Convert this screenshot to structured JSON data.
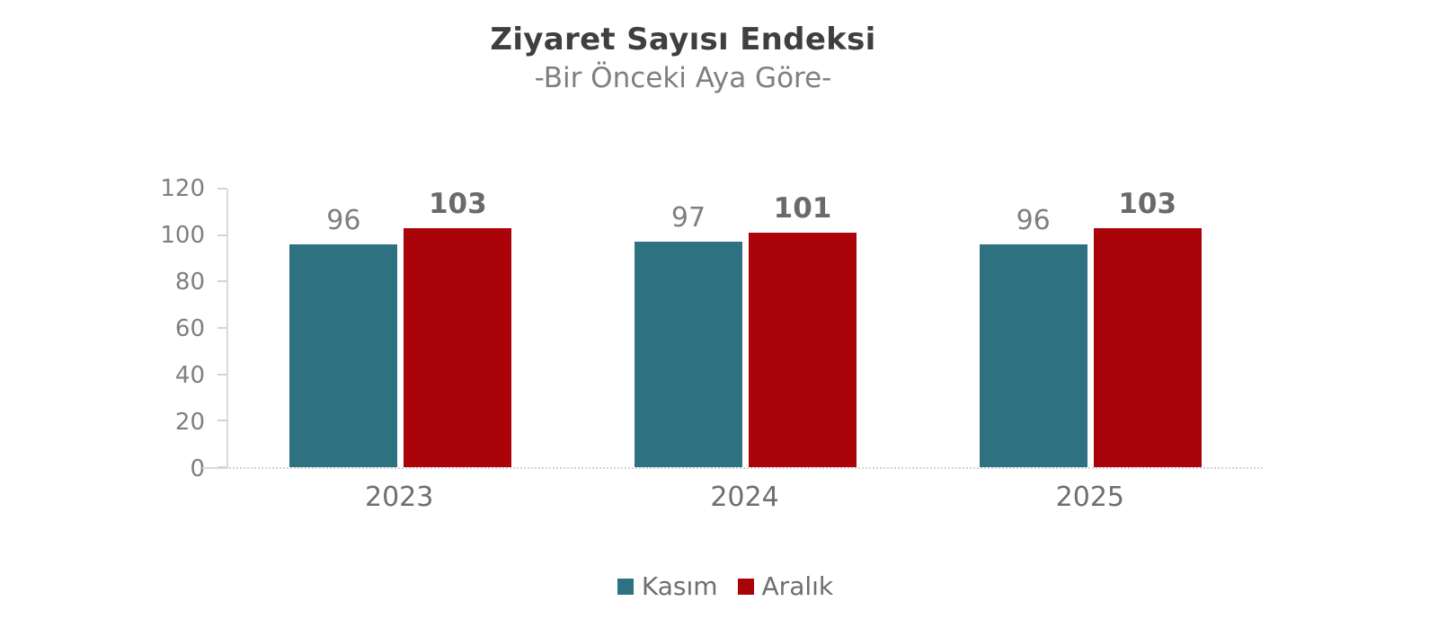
{
  "chart_data": {
    "type": "bar",
    "title": "Ziyaret Sayısı Endeksi",
    "subtitle": "-Bir Önceki Aya Göre-",
    "categories": [
      "2023",
      "2024",
      "2025"
    ],
    "series": [
      {
        "name": "Kasım",
        "color": "#2E7282",
        "values": [
          96,
          97,
          96
        ]
      },
      {
        "name": "Aralık",
        "color": "#AA0309",
        "values": [
          103,
          101,
          103
        ]
      }
    ],
    "yticks": [
      0,
      20,
      40,
      60,
      80,
      100,
      120
    ],
    "ylim": [
      0,
      120
    ],
    "grid": false,
    "legend_position": "bottom",
    "value_labels": true
  },
  "colors": {
    "title_text": "#3F3F3F",
    "subtitle_text": "#7F7F7F",
    "axis_tick_text": "#7F7F7F",
    "category_text": "#6E6E6E",
    "value_label_text": "#7F7F7F",
    "value_label_bold_text": "#6A6A6A",
    "axis_line": "#DADADA",
    "background": "#FFFFFF"
  }
}
